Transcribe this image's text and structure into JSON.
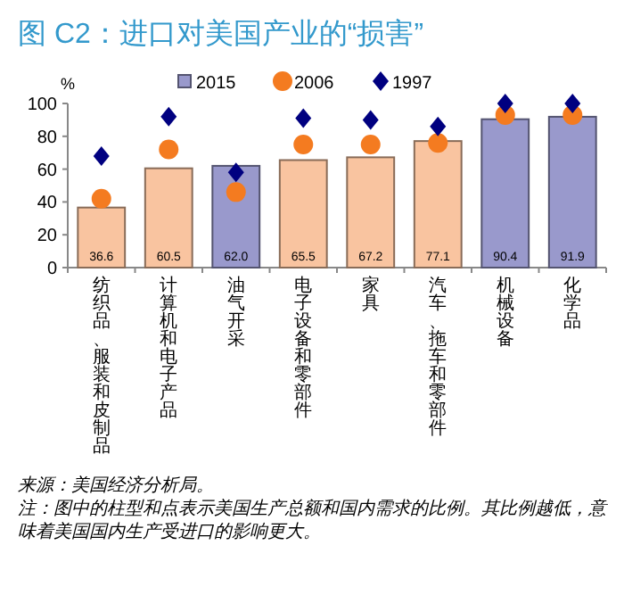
{
  "chart_data": {
    "type": "bar",
    "title": "图 C2：进口对美国产业的“损害”",
    "ylabel": "%",
    "categories": [
      "纺织品、服装和皮制品",
      "计算机和电子产品",
      "油气开采",
      "电子设备和零部件",
      "家具",
      "汽车、拖车和零部件",
      "机械设备",
      "化学品"
    ],
    "ylim": [
      0,
      100
    ],
    "yticks": [
      0,
      20,
      40,
      60,
      80,
      100
    ],
    "grid": false,
    "legend": "top",
    "series": [
      {
        "name": "2015",
        "type": "bar",
        "color": "#9999cc",
        "colors": [
          "#f9c4a0",
          "#f9c4a0",
          "#9999cc",
          "#f9c4a0",
          "#f9c4a0",
          "#f9c4a0",
          "#9999cc",
          "#9999cc"
        ],
        "values": [
          36.6,
          60.5,
          62.0,
          65.5,
          67.2,
          77.1,
          90.4,
          91.9
        ],
        "value_labels": [
          "36.6",
          "60.5",
          "62.0",
          "65.5",
          "67.2",
          "77.1",
          "90.4",
          "91.9"
        ]
      },
      {
        "name": "2006",
        "type": "scatter",
        "marker": "circle",
        "color": "#f47b20",
        "values": [
          42,
          72,
          46,
          75,
          75,
          76,
          93,
          93
        ]
      },
      {
        "name": "1997",
        "type": "scatter",
        "marker": "diamond",
        "color": "#000080",
        "values": [
          68,
          92,
          58,
          91,
          90,
          86,
          100,
          100
        ]
      }
    ],
    "annotations": [
      "来源：美国经济分析局。",
      "注：图中的柱型和点表示美国生产总额和国内需求的比例。其比例越低，意味着美国国内生产受进口的影响更大。"
    ]
  }
}
